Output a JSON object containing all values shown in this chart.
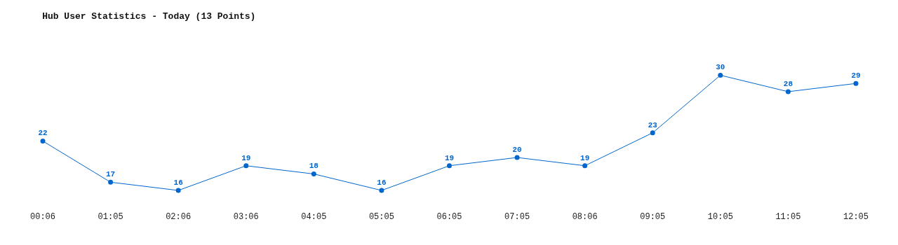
{
  "chart_data": {
    "type": "line",
    "title": "Hub User Statistics - Today (13 Points)",
    "categories": [
      "00:06",
      "01:05",
      "02:06",
      "03:06",
      "04:05",
      "05:05",
      "06:05",
      "07:05",
      "08:06",
      "09:05",
      "10:05",
      "11:05",
      "12:05"
    ],
    "series": [
      {
        "color": "#0066cc",
        "values": [
          22,
          17,
          16,
          19,
          18,
          16,
          19,
          20,
          19,
          23,
          30,
          28,
          29
        ]
      }
    ],
    "data_labels": true,
    "marker": "circle",
    "tick_labels": "x"
  }
}
